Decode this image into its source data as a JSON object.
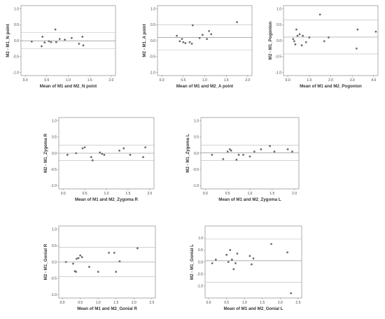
{
  "chart_data": [
    {
      "id": "n-point",
      "type": "scatter",
      "xlabel": "Mean of M1 and M2_N point",
      "ylabel": "M2 - M1_N point",
      "xlim": [
        -0.1,
        2.1
      ],
      "ylim": [
        -1.1,
        1.1
      ],
      "xticks": [
        0.0,
        0.5,
        1.0,
        1.5,
        2.0
      ],
      "yticks": [
        -1.0,
        -0.5,
        0.0,
        0.5,
        1.0
      ],
      "mean": -0.01,
      "loa_upper": 0.25,
      "loa_lower": -0.25,
      "points": [
        [
          0.15,
          -0.03
        ],
        [
          0.4,
          0.12
        ],
        [
          0.45,
          -0.06
        ],
        [
          0.55,
          -0.02
        ],
        [
          0.6,
          -0.05
        ],
        [
          0.7,
          0.35
        ],
        [
          0.72,
          -0.05
        ],
        [
          0.8,
          0.05
        ],
        [
          0.92,
          0.03
        ],
        [
          1.08,
          0.08
        ],
        [
          1.25,
          -0.1
        ],
        [
          1.33,
          0.12
        ],
        [
          1.35,
          -0.15
        ],
        [
          0.38,
          -0.18
        ]
      ]
    },
    {
      "id": "a-point",
      "type": "scatter",
      "xlabel": "Mean of M1 and M2_A point",
      "ylabel": "M2 - M1_A point",
      "xlim": [
        -0.1,
        2.1
      ],
      "ylim": [
        -1.1,
        1.1
      ],
      "xticks": [
        0.0,
        0.5,
        1.0,
        1.5,
        2.0
      ],
      "yticks": [
        -1.0,
        -0.5,
        0.0,
        0.5,
        1.0
      ],
      "mean": 0.1,
      "loa_upper": 0.5,
      "loa_lower": -0.3,
      "points": [
        [
          0.35,
          0.15
        ],
        [
          0.42,
          -0.02
        ],
        [
          0.47,
          0.05
        ],
        [
          0.5,
          -0.05
        ],
        [
          0.55,
          -0.08
        ],
        [
          0.65,
          -0.05
        ],
        [
          0.7,
          -0.1
        ],
        [
          0.72,
          0.48
        ],
        [
          0.88,
          0.08
        ],
        [
          0.95,
          0.18
        ],
        [
          1.05,
          0.05
        ],
        [
          1.1,
          0.3
        ],
        [
          1.15,
          0.2
        ],
        [
          1.75,
          0.58
        ]
      ]
    },
    {
      "id": "pogonion",
      "type": "scatter",
      "xlabel": "Mean of M1 and M2_Pogonion",
      "ylabel": "M2 - M1_Pogonion",
      "xlim": [
        -0.2,
        4.2
      ],
      "ylim": [
        -1.1,
        1.1
      ],
      "xticks": [
        0.0,
        1.0,
        2.0,
        3.0,
        4.0
      ],
      "yticks": [
        -1.0,
        -0.5,
        0.0,
        0.5,
        1.0
      ],
      "mean": 0.11,
      "loa_upper": 0.65,
      "loa_lower": -0.42,
      "points": [
        [
          0.25,
          0.05
        ],
        [
          0.3,
          -0.02
        ],
        [
          0.35,
          -0.12
        ],
        [
          0.4,
          0.35
        ],
        [
          0.45,
          0.15
        ],
        [
          0.55,
          0.2
        ],
        [
          0.65,
          -0.15
        ],
        [
          0.7,
          0.15
        ],
        [
          0.85,
          -0.05
        ],
        [
          1.0,
          0.1
        ],
        [
          1.5,
          0.82
        ],
        [
          1.7,
          -0.02
        ],
        [
          1.9,
          0.1
        ],
        [
          3.2,
          -0.25
        ],
        [
          3.25,
          0.35
        ],
        [
          4.1,
          0.28
        ]
      ]
    },
    {
      "id": "zygoma-r",
      "type": "scatter",
      "xlabel": "Mean of M1 and M2_Zygoma R",
      "ylabel": "M2 - M1_Zygoma R",
      "xlim": [
        -0.1,
        2.1
      ],
      "ylim": [
        -1.1,
        1.1
      ],
      "xticks": [
        0.0,
        0.5,
        1.0,
        1.5,
        2.0
      ],
      "yticks": [
        -1.0,
        -0.5,
        0.0,
        0.5,
        1.0
      ],
      "mean": 0.0,
      "loa_upper": 0.25,
      "loa_lower": -0.23,
      "points": [
        [
          0.1,
          -0.05
        ],
        [
          0.3,
          0.0
        ],
        [
          0.45,
          0.15
        ],
        [
          0.5,
          0.18
        ],
        [
          0.65,
          -0.12
        ],
        [
          0.68,
          -0.22
        ],
        [
          0.85,
          0.02
        ],
        [
          0.9,
          -0.02
        ],
        [
          0.95,
          -0.05
        ],
        [
          1.3,
          0.08
        ],
        [
          1.4,
          0.15
        ],
        [
          1.55,
          -0.05
        ],
        [
          1.85,
          -0.12
        ],
        [
          1.9,
          0.18
        ]
      ]
    },
    {
      "id": "zygoma-l",
      "type": "scatter",
      "xlabel": "Mean of M1 and M2_Zygoma L",
      "ylabel": "M2 - M1_Zygoma L",
      "xlim": [
        -0.1,
        2.1
      ],
      "ylim": [
        -1.1,
        1.1
      ],
      "xticks": [
        0.0,
        0.5,
        1.0,
        1.5,
        2.0
      ],
      "yticks": [
        -1.0,
        -0.5,
        0.0,
        0.5,
        1.0
      ],
      "mean": 0.01,
      "loa_upper": 0.25,
      "loa_lower": -0.23,
      "points": [
        [
          0.15,
          -0.05
        ],
        [
          0.4,
          -0.18
        ],
        [
          0.5,
          0.05
        ],
        [
          0.55,
          0.12
        ],
        [
          0.58,
          0.08
        ],
        [
          0.7,
          -0.2
        ],
        [
          0.75,
          -0.05
        ],
        [
          0.85,
          -0.05
        ],
        [
          1.0,
          -0.1
        ],
        [
          1.1,
          0.05
        ],
        [
          1.25,
          0.12
        ],
        [
          1.45,
          0.22
        ],
        [
          1.55,
          0.05
        ],
        [
          1.85,
          0.12
        ],
        [
          1.95,
          0.05
        ]
      ]
    },
    {
      "id": "gonial-r",
      "type": "scatter",
      "xlabel": "Mean of M1 and M2_Gonial R",
      "ylabel": "M2 - M1_Gonial R",
      "xlim": [
        -0.1,
        2.6
      ],
      "ylim": [
        -1.1,
        1.1
      ],
      "xticks": [
        0.0,
        0.5,
        1.0,
        1.5,
        2.0,
        2.5
      ],
      "yticks": [
        -1.0,
        -0.5,
        0.0,
        0.5,
        1.0
      ],
      "mean": 0.0,
      "loa_upper": 0.45,
      "loa_lower": -0.45,
      "points": [
        [
          0.1,
          0.0
        ],
        [
          0.3,
          -0.05
        ],
        [
          0.35,
          -0.28
        ],
        [
          0.38,
          -0.3
        ],
        [
          0.4,
          0.1
        ],
        [
          0.45,
          0.12
        ],
        [
          0.5,
          0.2
        ],
        [
          0.55,
          0.15
        ],
        [
          0.75,
          -0.15
        ],
        [
          1.0,
          -0.3
        ],
        [
          1.3,
          0.28
        ],
        [
          1.45,
          0.28
        ],
        [
          1.5,
          -0.3
        ],
        [
          1.6,
          0.02
        ],
        [
          2.1,
          0.42
        ]
      ]
    },
    {
      "id": "gonial-l",
      "type": "scatter",
      "xlabel": "Mean of M1 and M2_Gonial L",
      "ylabel": "M2 - M1_Gonial L",
      "xlim": [
        -0.1,
        2.6
      ],
      "ylim": [
        -1.5,
        1.5
      ],
      "xticks": [
        0.0,
        0.5,
        1.0,
        1.5,
        2.0,
        2.5
      ],
      "yticks": [
        -1.0,
        -0.5,
        0.0,
        0.5,
        1.0
      ],
      "mean": 0.05,
      "loa_upper": 0.95,
      "loa_lower": -0.85,
      "points": [
        [
          0.1,
          -0.05
        ],
        [
          0.2,
          0.1
        ],
        [
          0.5,
          0.3
        ],
        [
          0.55,
          0.0
        ],
        [
          0.6,
          0.5
        ],
        [
          0.65,
          0.1
        ],
        [
          0.7,
          -0.3
        ],
        [
          0.75,
          -0.05
        ],
        [
          0.8,
          0.35
        ],
        [
          1.15,
          0.25
        ],
        [
          1.2,
          -0.1
        ],
        [
          1.25,
          0.15
        ],
        [
          1.75,
          0.75
        ],
        [
          2.2,
          0.4
        ],
        [
          2.3,
          -1.3
        ]
      ]
    }
  ]
}
